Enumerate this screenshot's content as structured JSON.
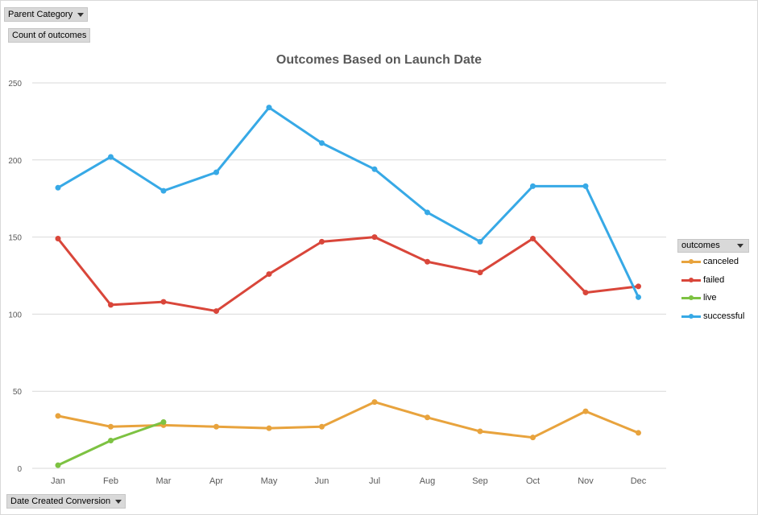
{
  "field_buttons": {
    "parent_category": "Parent Category",
    "count_of_outcomes": "Count of outcomes",
    "date_created": "Date Created Conversion"
  },
  "legend": {
    "title": "outcomes"
  },
  "chart_data": {
    "type": "line",
    "title": "Outcomes Based on Launch Date",
    "xlabel": "",
    "ylabel": "",
    "categories": [
      "Jan",
      "Feb",
      "Mar",
      "Apr",
      "May",
      "Jun",
      "Jul",
      "Aug",
      "Sep",
      "Oct",
      "Nov",
      "Dec"
    ],
    "ylim": [
      0,
      250
    ],
    "yticks": [
      0,
      50,
      100,
      150,
      200,
      250
    ],
    "grid": true,
    "legend_position": "right",
    "series": [
      {
        "name": "canceled",
        "color": "#e8a33d",
        "values": [
          34,
          27,
          28,
          27,
          26,
          27,
          43,
          33,
          24,
          20,
          37,
          23
        ]
      },
      {
        "name": "failed",
        "color": "#d9463a",
        "values": [
          149,
          106,
          108,
          102,
          126,
          147,
          150,
          134,
          127,
          149,
          114,
          118
        ]
      },
      {
        "name": "live",
        "color": "#7dc242",
        "values": [
          2,
          18,
          30,
          null,
          null,
          null,
          null,
          null,
          null,
          null,
          null,
          null
        ]
      },
      {
        "name": "successful",
        "color": "#37a9e6",
        "values": [
          182,
          202,
          180,
          192,
          234,
          211,
          194,
          166,
          147,
          183,
          183,
          111
        ]
      }
    ]
  }
}
